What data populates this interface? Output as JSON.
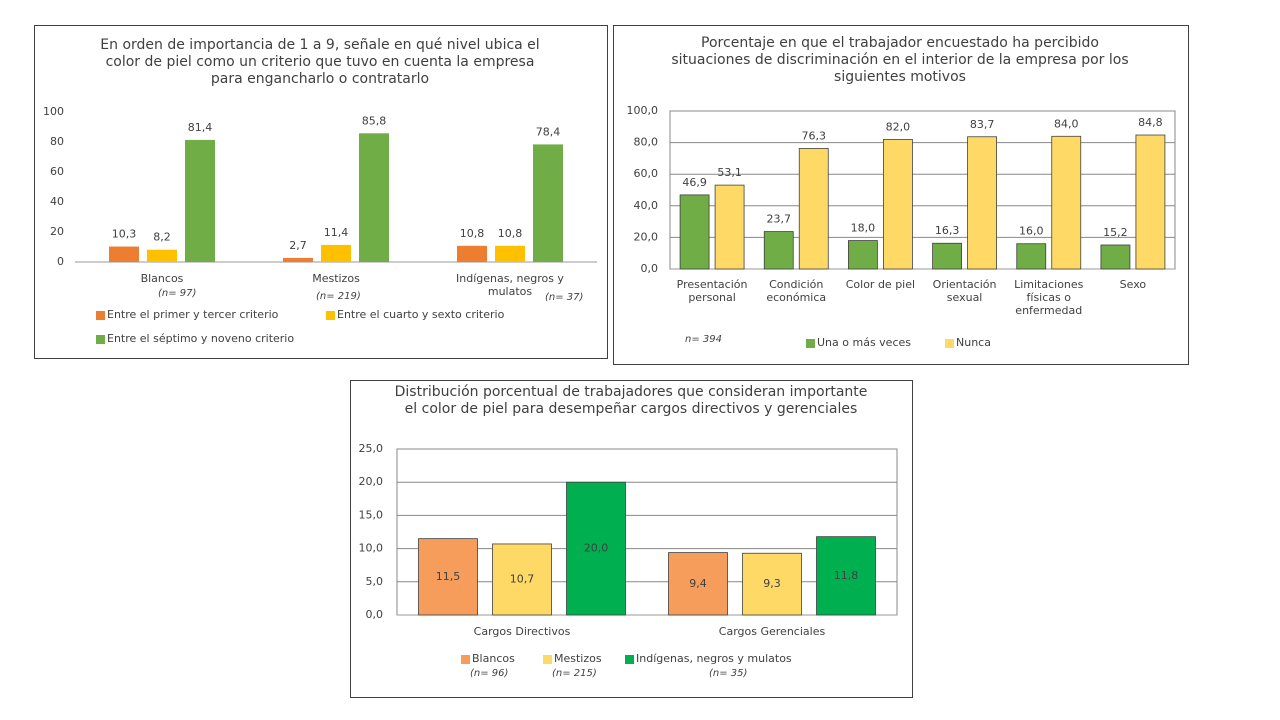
{
  "chart_data": [
    {
      "type": "bar",
      "title": "En orden de importancia de 1 a 9, señale en qué nivel ubica el color de piel como un  criterio que tuvo en cuenta la empresa para engancharlo o contratarlo",
      "categories": [
        "Blancos",
        "Mestizos",
        "Indígenas, negros y mulatos"
      ],
      "annotations": [
        "(n= 97)",
        "(n= 219)",
        "(n= 37)"
      ],
      "series": [
        {
          "name": "Entre el primer y tercer criterio",
          "color": "#ED7D31",
          "values": [
            10.3,
            2.7,
            10.8
          ],
          "value_labels": [
            "10,3",
            "2,7",
            "10,8"
          ]
        },
        {
          "name": "Entre el cuarto y sexto criterio",
          "color": "#FFC000",
          "values": [
            8.2,
            11.4,
            10.8
          ],
          "value_labels": [
            "8,2",
            "11,4",
            "10,8"
          ]
        },
        {
          "name": "Entre el séptimo y noveno criterio",
          "color": "#70AD47",
          "values": [
            81.4,
            85.8,
            78.4
          ],
          "value_labels": [
            "81,4",
            "85,8",
            "78,4"
          ]
        }
      ],
      "ylim": [
        0,
        100
      ],
      "yticks": [
        0,
        20,
        40,
        60,
        80,
        100
      ],
      "grid": false
    },
    {
      "type": "bar",
      "title": "Porcentaje en que el trabajador encuestado ha percibido situaciones de discriminación en el interior de la empresa por los siguientes motivos",
      "categories": [
        "Presentación personal",
        "Condición económica",
        "Color de piel",
        "Orientación sexual",
        "Limitaciones físicas o enfermedad",
        "Sexo"
      ],
      "annotations": [
        "n= 394"
      ],
      "series": [
        {
          "name": "Una o más veces",
          "color": "#70AD47",
          "values": [
            46.9,
            23.7,
            18.0,
            16.3,
            16.0,
            15.2
          ],
          "value_labels": [
            "46,9",
            "23,7",
            "18,0",
            "16,3",
            "16,0",
            "15,2"
          ]
        },
        {
          "name": "Nunca",
          "color": "#FFD966",
          "values": [
            53.1,
            76.3,
            82.0,
            83.7,
            84.0,
            84.8
          ],
          "value_labels": [
            "53,1",
            "76,3",
            "82,0",
            "83,7",
            "84,0",
            "84,8"
          ]
        }
      ],
      "ylim": [
        0,
        100
      ],
      "yticks": [
        {
          "value": 0,
          "label": "0,0"
        },
        {
          "value": 20,
          "label": "20,0"
        },
        {
          "value": 40,
          "label": "40,0"
        },
        {
          "value": 60,
          "label": "60,0"
        },
        {
          "value": 80,
          "label": "80,0"
        },
        {
          "value": 100,
          "label": "100,0"
        }
      ],
      "grid": true
    },
    {
      "type": "bar",
      "title": "Distribución porcentual de trabajadores que consideran importante el color de piel para desempeñar cargos directivos y gerenciales",
      "categories": [
        "Cargos Directivos",
        "Cargos Gerenciales"
      ],
      "annotations": [
        "(n= 96)",
        "(n= 215)",
        "(n= 35)"
      ],
      "series": [
        {
          "name": "Blancos",
          "color": "#F79D5C",
          "values": [
            11.5,
            9.4
          ],
          "value_labels": [
            "11,5",
            "9,4"
          ]
        },
        {
          "name": "Mestizos",
          "color": "#FFD966",
          "values": [
            10.7,
            9.3
          ],
          "value_labels": [
            "10,7",
            "9,3"
          ]
        },
        {
          "name": "Indígenas, negros y mulatos",
          "color": "#00B050",
          "values": [
            20.0,
            11.8
          ],
          "value_labels": [
            "20,0",
            "11,8"
          ]
        }
      ],
      "ylim": [
        0,
        25
      ],
      "yticks": [
        {
          "value": 0,
          "label": "0,0"
        },
        {
          "value": 5,
          "label": "5,0"
        },
        {
          "value": 10,
          "label": "10,0"
        },
        {
          "value": 15,
          "label": "15,0"
        },
        {
          "value": 20,
          "label": "20,0"
        },
        {
          "value": 25,
          "label": "25,0"
        }
      ],
      "grid": true
    }
  ]
}
